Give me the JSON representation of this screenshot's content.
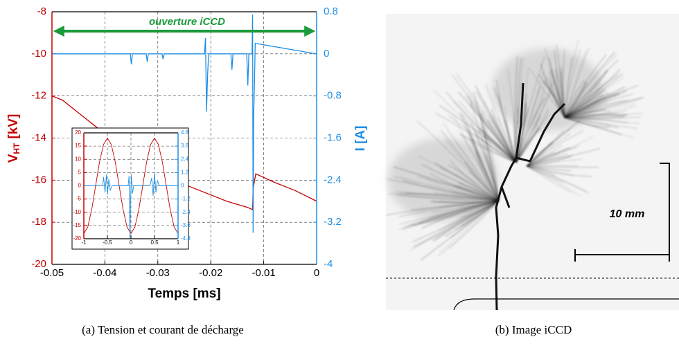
{
  "chart_data": [
    {
      "type": "line",
      "xlabel": "Temps [ms]",
      "ylabel": {
        "main": "V",
        "sub": "HT",
        "unit": "[kV]"
      },
      "y2label": "I [A]",
      "annotation": "ouverture iCCD",
      "xlim": [
        -0.05,
        0
      ],
      "xticks": [
        -0.05,
        -0.04,
        -0.03,
        -0.02,
        -0.01,
        0
      ],
      "ylim": [
        -20,
        -8
      ],
      "yticks": [
        -20,
        -18,
        -16,
        -14,
        -12,
        -10,
        -8
      ],
      "y2lim": [
        -4,
        0.8
      ],
      "y2ticks": [
        -4,
        -3.2,
        -2.4,
        -1.6,
        -0.8,
        0,
        0.8
      ],
      "grid": true,
      "series": [
        {
          "color": "#c40000",
          "x": [
            -0.05,
            -0.048,
            -0.045,
            -0.04,
            -0.035,
            -0.03,
            -0.025,
            -0.021,
            -0.017,
            -0.013,
            -0.0121,
            -0.012,
            -0.0115,
            -0.008,
            -0.004,
            0
          ],
          "values": [
            -12,
            -12.2,
            -12.8,
            -13.8,
            -14.7,
            -15.5,
            -16.2,
            -16.6,
            -17.0,
            -17.3,
            -17.4,
            -16.4,
            -15.7,
            -16.1,
            -16.5,
            -17.0
          ]
        },
        {
          "color": "#1e8fe6",
          "axis": "y2",
          "x": [
            -0.05,
            -0.0352,
            -0.035,
            -0.0348,
            -0.0322,
            -0.032,
            -0.0318,
            -0.0292,
            -0.029,
            -0.0288,
            -0.0212,
            -0.021,
            -0.0208,
            -0.0206,
            -0.0204,
            -0.0162,
            -0.016,
            -0.0158,
            -0.0132,
            -0.013,
            -0.0128,
            -0.0122,
            -0.0121,
            -0.012,
            -0.0119,
            -0.0118,
            -0.0116,
            0
          ],
          "values": [
            0,
            0,
            -0.2,
            0,
            0,
            -0.15,
            0,
            0,
            -0.1,
            0,
            0,
            0.3,
            -1.1,
            -0.4,
            0,
            0,
            -0.3,
            0,
            0,
            -0.6,
            0,
            0,
            0.75,
            -3.4,
            -1.2,
            -0.8,
            0.2,
            0
          ]
        }
      ]
    },
    {
      "type": "line",
      "xlim": [
        -1,
        1
      ],
      "xticks": [
        -1,
        -0.5,
        0,
        0.5,
        1
      ],
      "ylim": [
        -20,
        20
      ],
      "yticks": [
        -20,
        -15,
        -10,
        -5,
        0,
        5,
        10,
        15,
        20
      ],
      "y2lim": [
        -4.8,
        4.8
      ],
      "y2ticks": [
        -4.8,
        -3.6,
        -2.4,
        -1.2,
        0,
        1.2,
        2.4,
        3.6,
        4.8
      ],
      "grid": true,
      "series": [
        {
          "color": "#c40000",
          "x": [
            -1,
            -0.917,
            -0.833,
            -0.75,
            -0.667,
            -0.583,
            -0.5,
            -0.417,
            -0.333,
            -0.25,
            -0.167,
            -0.083,
            0,
            0.083,
            0.167,
            0.25,
            0.333,
            0.417,
            0.5,
            0.583,
            0.667,
            0.75,
            0.833,
            0.917,
            1
          ],
          "values": [
            -18,
            -15.6,
            -9,
            0,
            9,
            15.6,
            18,
            15.6,
            9,
            0,
            -9,
            -15.6,
            -18,
            -15.6,
            -9,
            0,
            9,
            15.6,
            18,
            15.6,
            9,
            0,
            -9,
            -15.6,
            -18
          ]
        },
        {
          "color": "#1e8fe6",
          "axis": "y2",
          "x": [
            -1,
            -0.6,
            -0.58,
            -0.55,
            -0.52,
            -0.5,
            -0.47,
            -0.44,
            -0.4,
            -0.06,
            -0.04,
            -0.02,
            -0.01,
            0.01,
            0.03,
            0.06,
            0.4,
            0.44,
            0.47,
            0.5,
            0.53,
            0.56,
            0.6,
            1
          ],
          "values": [
            0,
            0,
            0.8,
            -0.6,
            1.0,
            -0.8,
            0.6,
            -0.4,
            0,
            0,
            0.9,
            -4.8,
            -1.5,
            1.0,
            -0.7,
            0,
            0,
            0.7,
            -0.9,
            1.1,
            -0.6,
            0.5,
            0,
            0
          ]
        }
      ]
    }
  ],
  "image": {
    "scale_label": "10 mm"
  },
  "captions": [
    "(a) Tension et courant de décharge",
    "(b) Image iCCD"
  ]
}
